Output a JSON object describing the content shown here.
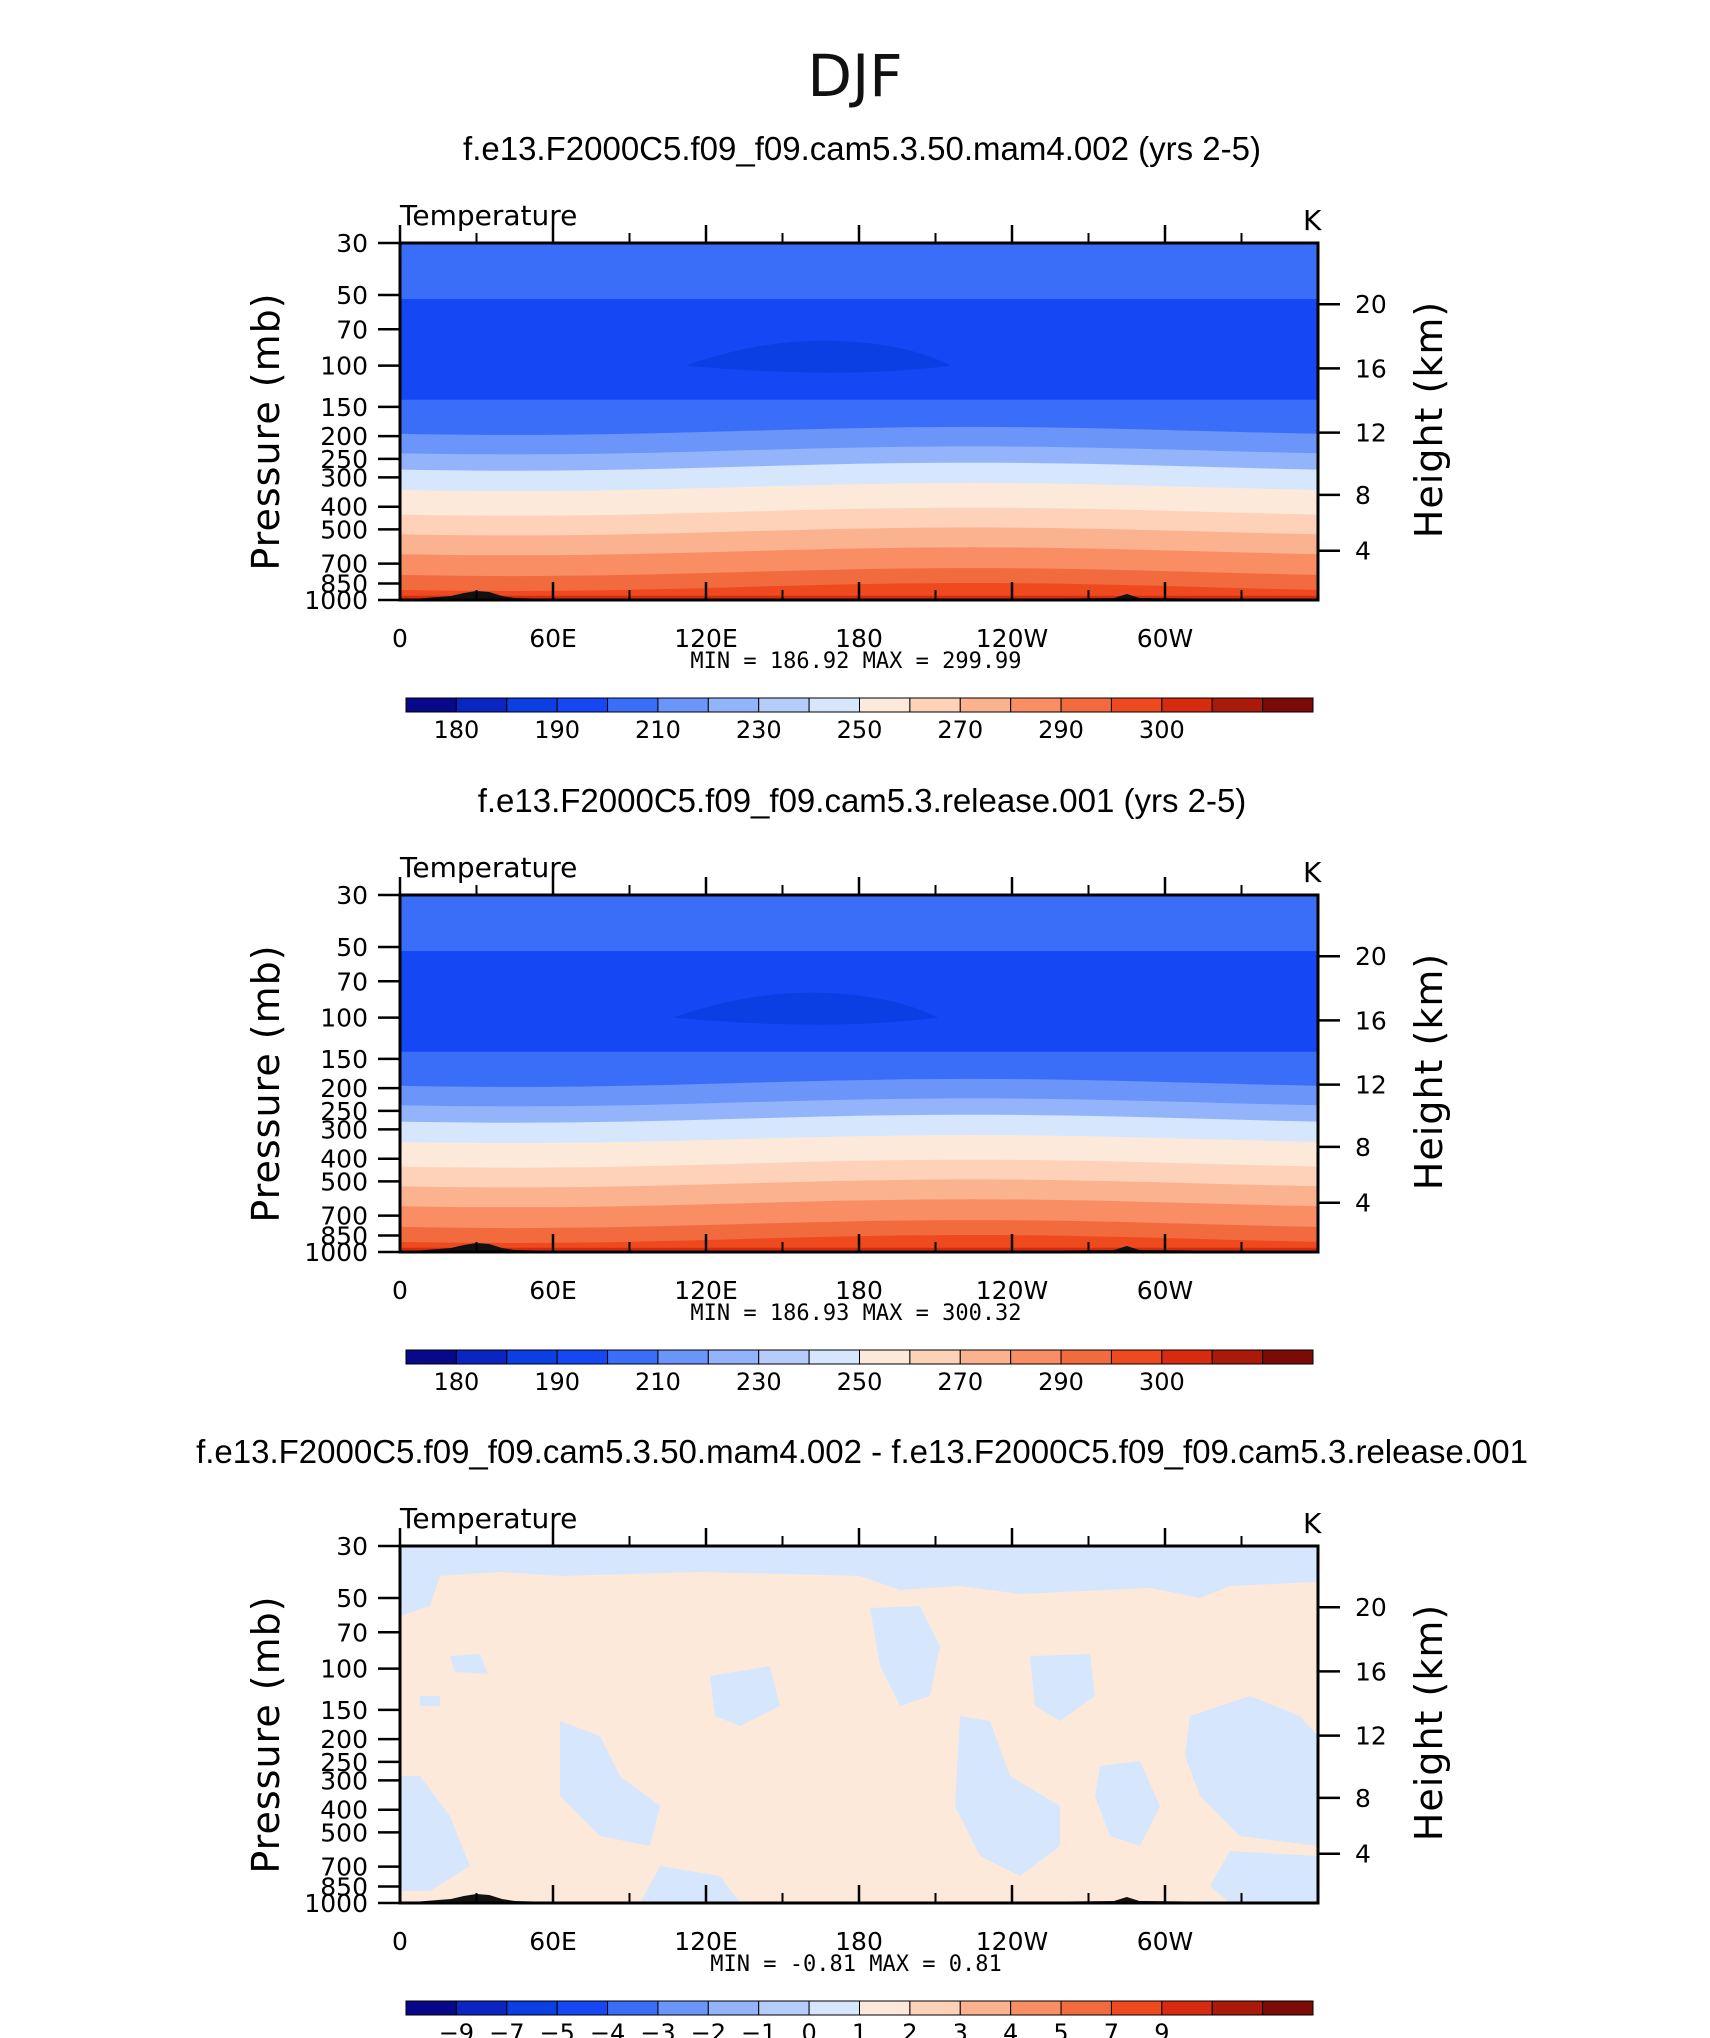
{
  "figure": {
    "title": "DJF"
  },
  "colors": {
    "temperature_palette": [
      "#08088b",
      "#0a25c2",
      "#0b3ee3",
      "#1547f5",
      "#3a6ef8",
      "#6b95f8",
      "#93b4fb",
      "#b6cdfc",
      "#d6e7fd",
      "#fde9d9",
      "#fdd2b9",
      "#fbb28f",
      "#f98d63",
      "#f26b3e",
      "#ef4a1f",
      "#d62b10",
      "#aa1a0a",
      "#7c0a06"
    ],
    "diff_palette": [
      "#08088b",
      "#0a25c2",
      "#0b3ee3",
      "#1547f5",
      "#3a6ef8",
      "#6b95f8",
      "#93b4fb",
      "#b6cdfc",
      "#d6e7fd",
      "#fde9d9",
      "#fdd2b9",
      "#fbb28f",
      "#f98d63",
      "#f26b3e",
      "#ef4a1f",
      "#d62b10",
      "#aa1a0a",
      "#7c0a06"
    ],
    "topography": "#111111"
  },
  "chart_data": [
    {
      "type": "heatmap",
      "title": "f.e13.F2000C5.f09_f09.cam5.3.50.mam4.002 (yrs 2-5)",
      "left_label": "Temperature",
      "units": "K",
      "xlabel": "",
      "ylabel": "Pressure (mb)",
      "ylabel_right": "Height (km)",
      "x_ticks": [
        "0",
        "60E",
        "120E",
        "180",
        "120W",
        "60W"
      ],
      "x_range": [
        0,
        360
      ],
      "y_ticks": [
        "30",
        "50",
        "70",
        "100",
        "150",
        "200",
        "250",
        "300",
        "400",
        "500",
        "700",
        "850",
        "1000"
      ],
      "y_range_mb": [
        30,
        1000
      ],
      "y_right_ticks": [
        "20",
        "16",
        "12",
        "8",
        "4"
      ],
      "stats_text": "MIN =  186.92   MAX =  299.99",
      "colorbar_labels": [
        "180",
        "190",
        "210",
        "230",
        "250",
        "270",
        "290",
        "300"
      ],
      "cold_pool": {
        "center_lon": 165,
        "pressure_mb": 100
      },
      "layers": [
        {
          "from_mb": 30,
          "to_mb": 52,
          "color_index": 4
        },
        {
          "from_mb": 52,
          "to_mb": 140,
          "color_index": 3
        },
        {
          "from_mb": 140,
          "to_mb": 190,
          "color_index": 4
        },
        {
          "from_mb": 190,
          "to_mb": 230,
          "color_index": 5
        },
        {
          "from_mb": 230,
          "to_mb": 270,
          "color_index": 6
        },
        {
          "from_mb": 270,
          "to_mb": 330,
          "color_index": 8
        },
        {
          "from_mb": 330,
          "to_mb": 420,
          "color_index": 9
        },
        {
          "from_mb": 420,
          "to_mb": 510,
          "color_index": 10
        },
        {
          "from_mb": 510,
          "to_mb": 620,
          "color_index": 11
        },
        {
          "from_mb": 620,
          "to_mb": 760,
          "color_index": 12
        },
        {
          "from_mb": 760,
          "to_mb": 880,
          "color_index": 13
        },
        {
          "from_mb": 880,
          "to_mb": 960,
          "color_index": 14
        },
        {
          "from_mb": 960,
          "to_mb": 1000,
          "color_index": 15
        }
      ]
    },
    {
      "type": "heatmap",
      "title": "f.e13.F2000C5.f09_f09.cam5.3.release.001 (yrs 2-5)",
      "left_label": "Temperature",
      "units": "K",
      "xlabel": "",
      "ylabel": "Pressure (mb)",
      "ylabel_right": "Height (km)",
      "x_ticks": [
        "0",
        "60E",
        "120E",
        "180",
        "120W",
        "60W"
      ],
      "x_range": [
        0,
        360
      ],
      "y_ticks": [
        "30",
        "50",
        "70",
        "100",
        "150",
        "200",
        "250",
        "300",
        "400",
        "500",
        "700",
        "850",
        "1000"
      ],
      "y_range_mb": [
        30,
        1000
      ],
      "y_right_ticks": [
        "20",
        "16",
        "12",
        "8",
        "4"
      ],
      "stats_text": "MIN =  186.93   MAX =  300.32",
      "colorbar_labels": [
        "180",
        "190",
        "210",
        "230",
        "250",
        "270",
        "290",
        "300"
      ],
      "cold_pool": {
        "center_lon": 160,
        "pressure_mb": 100
      },
      "layers": [
        {
          "from_mb": 30,
          "to_mb": 52,
          "color_index": 4
        },
        {
          "from_mb": 52,
          "to_mb": 140,
          "color_index": 3
        },
        {
          "from_mb": 140,
          "to_mb": 190,
          "color_index": 4
        },
        {
          "from_mb": 190,
          "to_mb": 230,
          "color_index": 5
        },
        {
          "from_mb": 230,
          "to_mb": 270,
          "color_index": 6
        },
        {
          "from_mb": 270,
          "to_mb": 330,
          "color_index": 8
        },
        {
          "from_mb": 330,
          "to_mb": 420,
          "color_index": 9
        },
        {
          "from_mb": 420,
          "to_mb": 510,
          "color_index": 10
        },
        {
          "from_mb": 510,
          "to_mb": 620,
          "color_index": 11
        },
        {
          "from_mb": 620,
          "to_mb": 760,
          "color_index": 12
        },
        {
          "from_mb": 760,
          "to_mb": 880,
          "color_index": 13
        },
        {
          "from_mb": 880,
          "to_mb": 960,
          "color_index": 14
        },
        {
          "from_mb": 960,
          "to_mb": 1000,
          "color_index": 15
        }
      ]
    },
    {
      "type": "heatmap",
      "title": "f.e13.F2000C5.f09_f09.cam5.3.50.mam4.002 - f.e13.F2000C5.f09_f09.cam5.3.release.001",
      "left_label": "Temperature",
      "units": "K",
      "xlabel": "",
      "ylabel": "Pressure (mb)",
      "ylabel_right": "Height (km)",
      "x_ticks": [
        "0",
        "60E",
        "120E",
        "180",
        "120W",
        "60W"
      ],
      "x_range": [
        0,
        360
      ],
      "y_ticks": [
        "30",
        "50",
        "70",
        "100",
        "150",
        "200",
        "250",
        "300",
        "400",
        "500",
        "700",
        "850",
        "1000"
      ],
      "y_range_mb": [
        30,
        1000
      ],
      "y_right_ticks": [
        "20",
        "16",
        "12",
        "8",
        "4"
      ],
      "stats_text": "MIN =    -0.81   MAX =     0.81",
      "colorbar_labels": [
        "-9",
        "-7",
        "-5",
        "-4",
        "-3",
        "-2",
        "-1",
        "0",
        "1",
        "2",
        "3",
        "4",
        "5",
        "7",
        "9"
      ],
      "value_range": [
        -0.81,
        0.81
      ]
    }
  ]
}
